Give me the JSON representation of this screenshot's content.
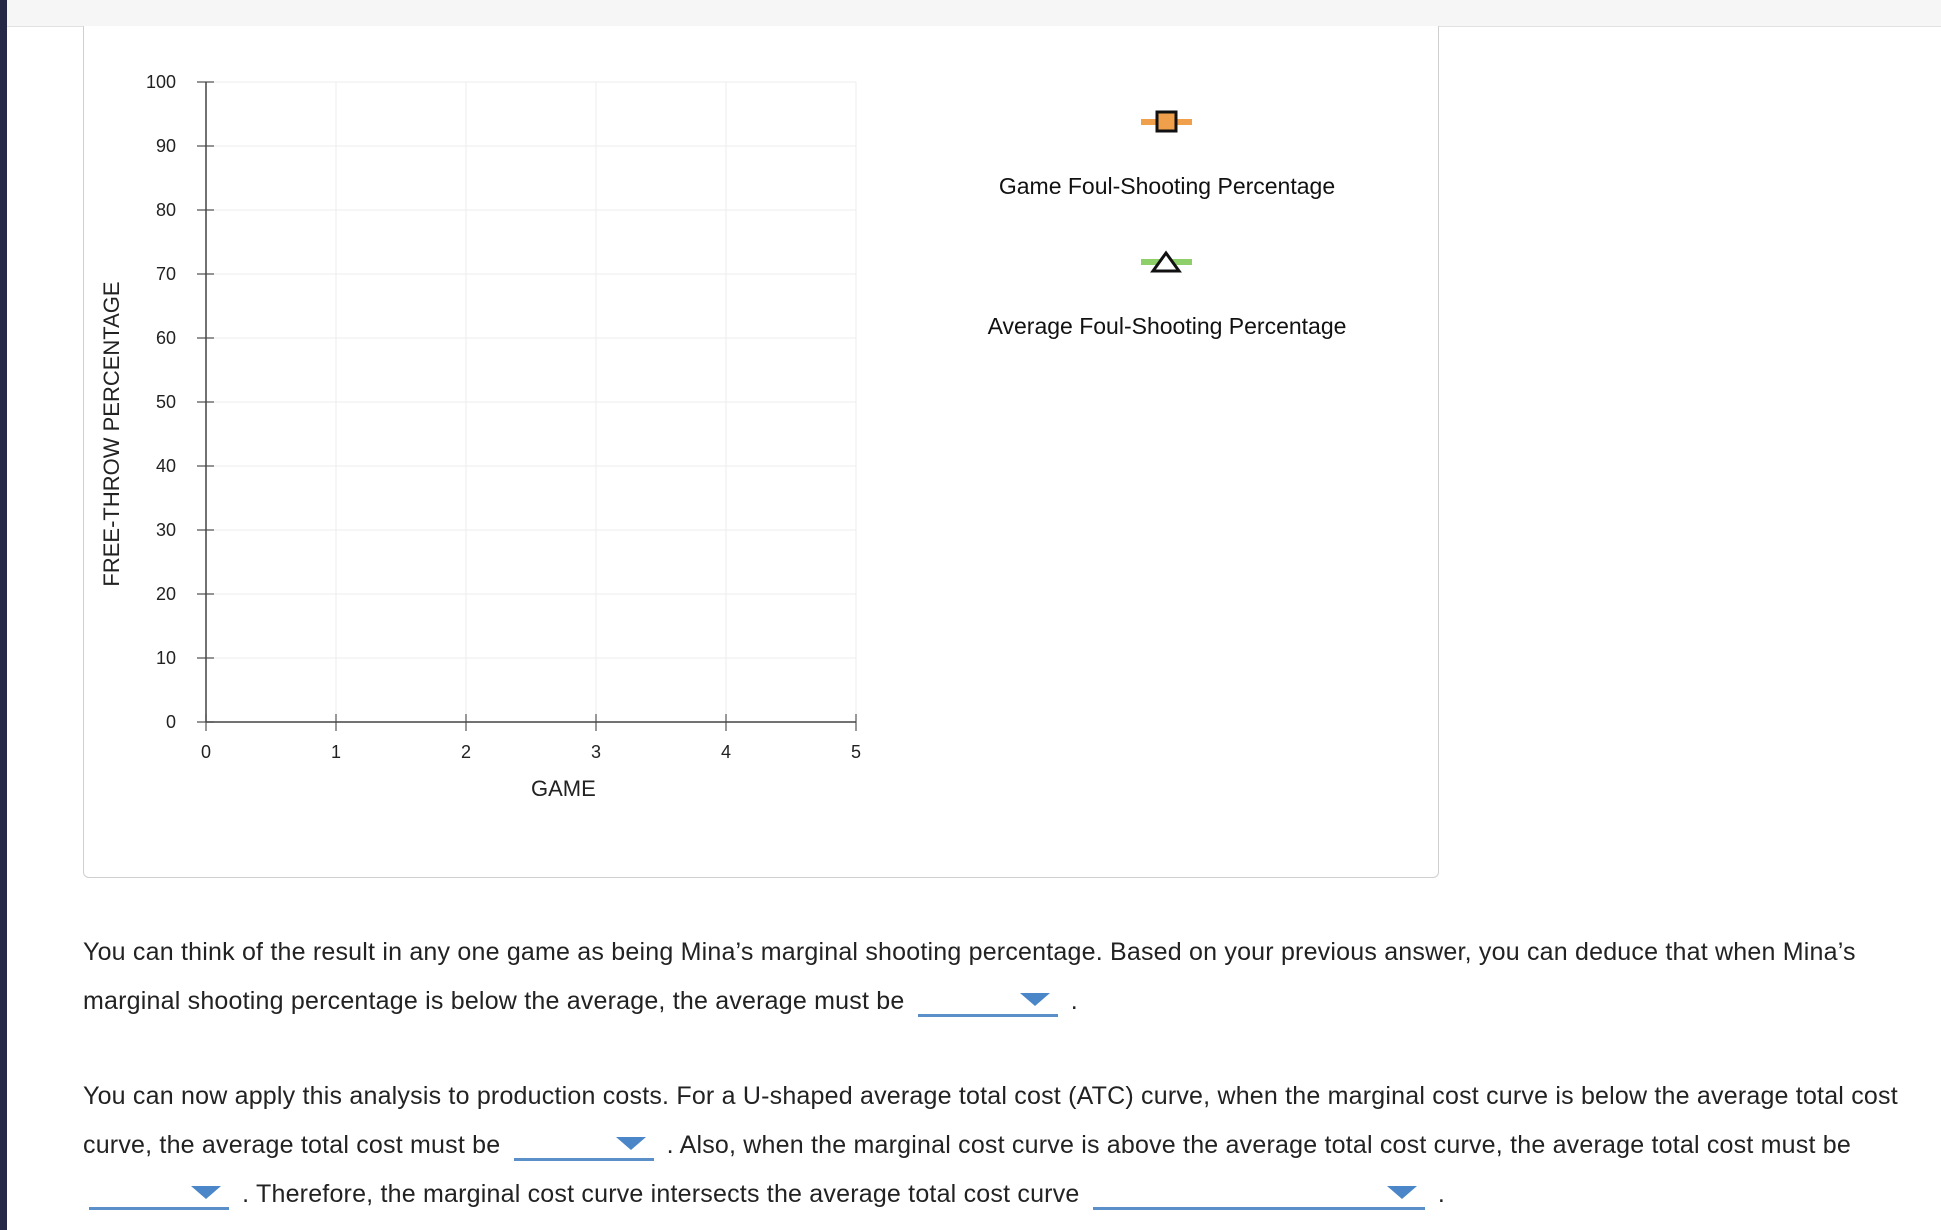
{
  "colors": {
    "rail": "#242a45",
    "game_series": "#f0a04b",
    "average_series": "#8fcf6a",
    "dropdown_accent": "#4a86c8",
    "grid": "#ececec"
  },
  "chart_data": {
    "type": "line",
    "xlabel": "GAME",
    "ylabel": "FREE-THROW PERCENTAGE",
    "xlim": [
      0,
      5
    ],
    "ylim": [
      0,
      100
    ],
    "x_ticks": [
      "0",
      "1",
      "2",
      "3",
      "4",
      "5"
    ],
    "y_ticks": [
      "0",
      "10",
      "20",
      "30",
      "40",
      "50",
      "60",
      "70",
      "80",
      "90",
      "100"
    ],
    "grid": true,
    "legend_position": "right",
    "series": [
      {
        "name": "Game Foul-Shooting Percentage",
        "marker": "square",
        "color": "#f0a04b",
        "values": []
      },
      {
        "name": "Average Foul-Shooting Percentage",
        "marker": "triangle",
        "color": "#8fcf6a",
        "values": []
      }
    ]
  },
  "questions": {
    "q1": {
      "text_before": "You can think of the result in any one game as being Mina’s marginal shooting percentage. Based on your previous answer, you can deduce that when Mina’s marginal shooting percentage is below the average, the average must be",
      "text_after": ".",
      "dropdown_1": {
        "value": ""
      }
    },
    "q2": {
      "text_part1": "You can now apply this analysis to production costs. For a U-shaped average total cost (ATC) curve, when the marginal cost curve is below the average total cost curve, the average total cost must be",
      "text_part2": ". Also, when the marginal cost curve is above the average total cost curve, the average total cost must be",
      "text_part3": ". Therefore, the marginal cost curve intersects the average total cost curve",
      "text_part4": ".",
      "dropdown_1": {
        "value": ""
      },
      "dropdown_2": {
        "value": ""
      },
      "dropdown_3": {
        "value": ""
      }
    }
  }
}
